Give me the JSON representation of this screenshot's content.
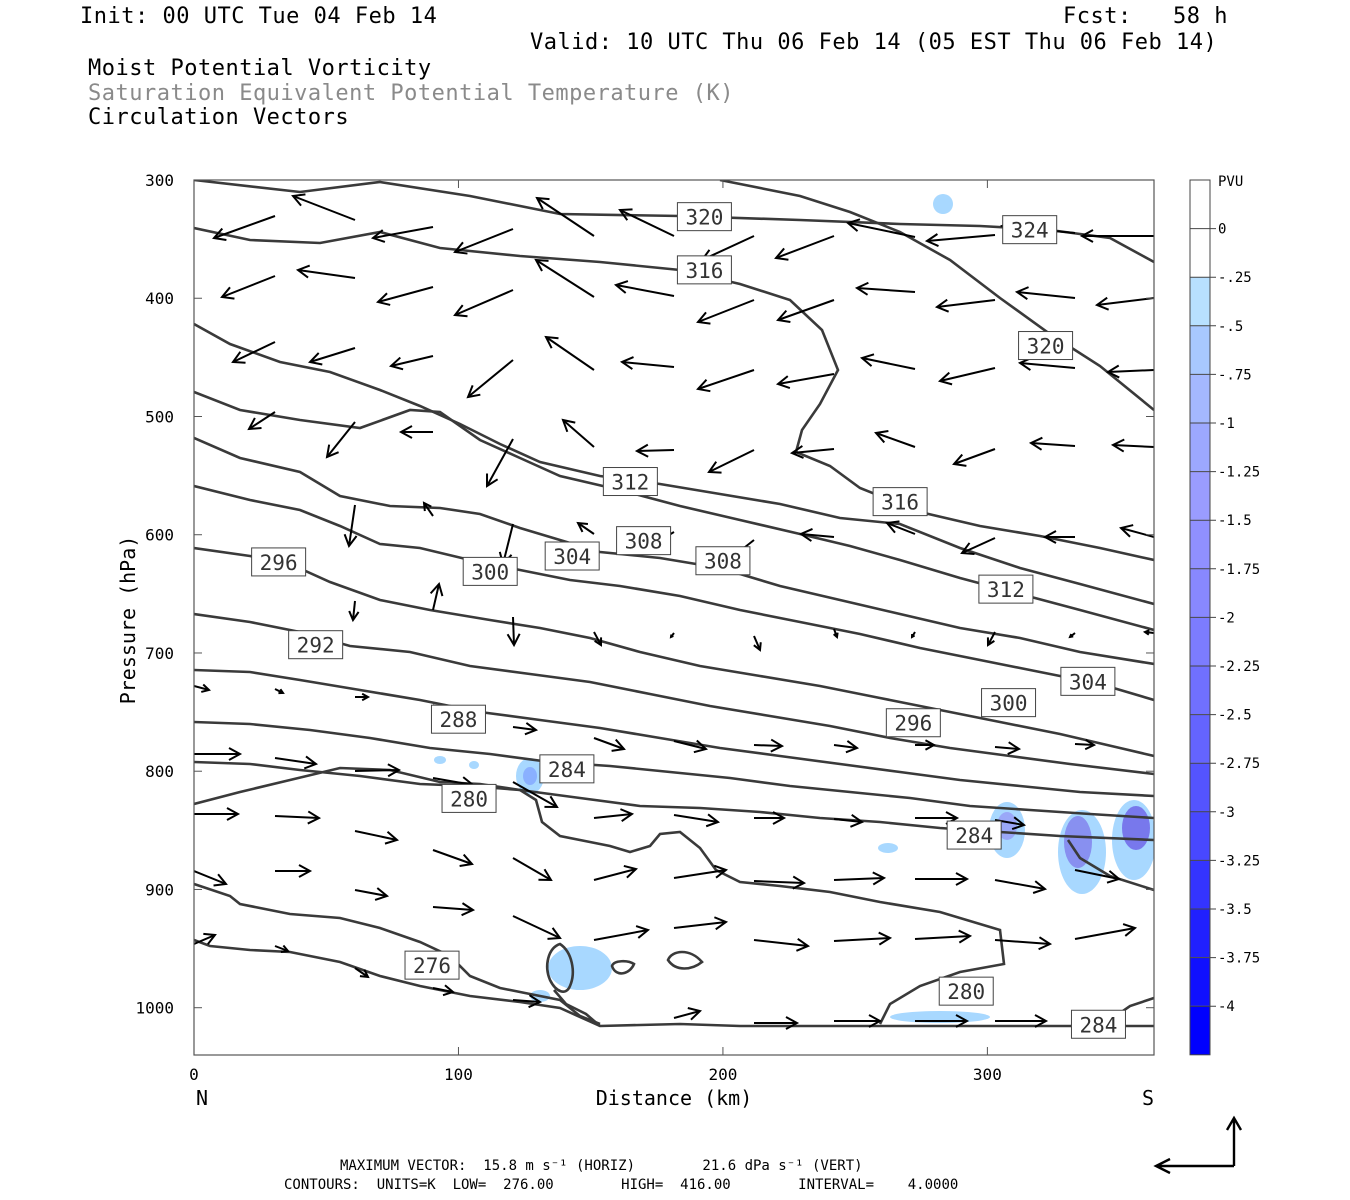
{
  "header": {
    "init": "Init: 00 UTC Tue 04 Feb 14",
    "fcst": "Fcst:   58 h",
    "valid": "Valid: 10 UTC Thu 06 Feb 14 (05 EST Thu 06 Feb 14)",
    "field1": "Moist Potential Vorticity",
    "field2": "Saturation Equivalent Potential Temperature (K)",
    "field3": "Circulation Vectors"
  },
  "chart_data": {
    "type": "contour cross-section",
    "xlabel": "Distance (km)",
    "ylabel": "Pressure (hPa)",
    "xlim": [
      0,
      363
    ],
    "ylim": [
      1040,
      300
    ],
    "x_ticks": [
      0,
      100,
      200,
      300
    ],
    "y_ticks": [
      300,
      400,
      500,
      600,
      700,
      800,
      900,
      1000
    ],
    "left_end_label": "N",
    "right_end_label": "S",
    "colors": {
      "contour": "#3a3a3a",
      "pv_fill_light": "#a8d8ff",
      "pv_fill_mid": "#8890f0",
      "pv_fill_dark": "#6a6ae8",
      "arrow": "#000000"
    },
    "contour_labels": [
      {
        "text": "320",
        "x": 193,
        "p": 331
      },
      {
        "text": "324",
        "x": 316,
        "p": 342
      },
      {
        "text": "316",
        "x": 193,
        "p": 376
      },
      {
        "text": "320",
        "x": 322,
        "p": 440
      },
      {
        "text": "312",
        "x": 165,
        "p": 555
      },
      {
        "text": "316",
        "x": 267,
        "p": 572
      },
      {
        "text": "308",
        "x": 170,
        "p": 605
      },
      {
        "text": "304",
        "x": 143,
        "p": 618
      },
      {
        "text": "308",
        "x": 200,
        "p": 622
      },
      {
        "text": "300",
        "x": 112,
        "p": 631
      },
      {
        "text": "296",
        "x": 32,
        "p": 623
      },
      {
        "text": "312",
        "x": 307,
        "p": 646
      },
      {
        "text": "292",
        "x": 46,
        "p": 693
      },
      {
        "text": "304",
        "x": 338,
        "p": 724
      },
      {
        "text": "300",
        "x": 308,
        "p": 742
      },
      {
        "text": "296",
        "x": 272,
        "p": 759
      },
      {
        "text": "288",
        "x": 100,
        "p": 756
      },
      {
        "text": "284",
        "x": 141,
        "p": 798
      },
      {
        "text": "280",
        "x": 104,
        "p": 823
      },
      {
        "text": "284",
        "x": 295,
        "p": 854
      },
      {
        "text": "276",
        "x": 90,
        "p": 964
      },
      {
        "text": "280",
        "x": 292,
        "p": 986
      },
      {
        "text": "284",
        "x": 342,
        "p": 1014
      }
    ],
    "legend": {
      "title": "PVU",
      "labels": [
        "0",
        "-.25",
        "-.5",
        "-.75",
        "-1",
        "-1.25",
        "-1.5",
        "-1.75",
        "-2",
        "-2.25",
        "-2.5",
        "-2.75",
        "-3",
        "-3.25",
        "-3.5",
        "-3.75",
        "-4"
      ]
    }
  },
  "footer": {
    "line1": "MAXIMUM VECTOR:  15.8 m s⁻¹ (HORIZ)        21.6 dPa s⁻¹ (VERT)",
    "line2": "CONTOURS:  UNITS=K  LOW=  276.00        HIGH=  416.00        INTERVAL=    4.0000"
  }
}
